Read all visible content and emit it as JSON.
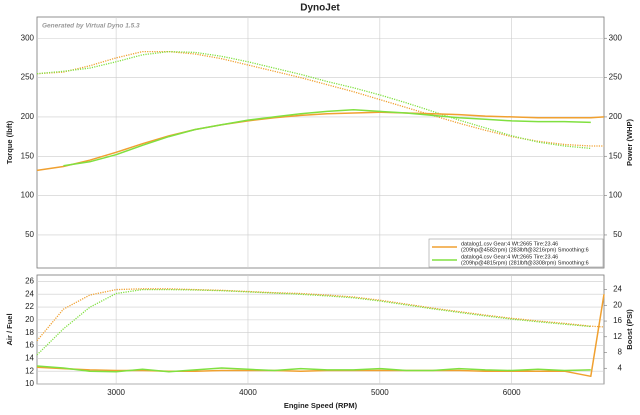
{
  "chart_data": [
    {
      "type": "line",
      "title": "DynoJet",
      "annotation": "Generated by Virtual Dyno 1.5.3",
      "ylabel": "Torque (lbft)",
      "y2label": "Power (WHP)",
      "x": [
        2400,
        2600,
        2800,
        3000,
        3200,
        3400,
        3600,
        3800,
        4000,
        4200,
        4400,
        4600,
        4800,
        5000,
        5200,
        5400,
        5600,
        5800,
        6000,
        6200,
        6400,
        6600,
        6700
      ],
      "xlim": [
        2400,
        6700
      ],
      "xticks": [
        3000,
        4000,
        5000,
        6000
      ],
      "ylim": [
        8,
        327
      ],
      "yticks": [
        50,
        100,
        150,
        200,
        250,
        300
      ],
      "y2lim": [
        8,
        327
      ],
      "y2ticks": [
        50,
        100,
        150,
        200,
        250,
        300
      ],
      "grid": true,
      "legend": "lower right",
      "series": [
        {
          "name": "datalog1.csv Gear:4 Wt:2665 Tire:23.46",
          "detail": "(209hp@4582rpm) (283lbft@3216rpm) Smoothing:6",
          "color": "#f0a030",
          "style": "dotted",
          "values": [
            255,
            257,
            265,
            275,
            283,
            283,
            280,
            274,
            266,
            258,
            250,
            241,
            232,
            222,
            212,
            202,
            192,
            183,
            175,
            169,
            165,
            163,
            163
          ]
        },
        {
          "name": "datalog4.csv Gear:4 Wt:2665 Tire:23.46",
          "detail": "(209hp@4815rpm) (281lbft@3308rpm) Smoothing:6",
          "color": "#80e040",
          "style": "dotted",
          "values": [
            255,
            258,
            262,
            270,
            279,
            283,
            282,
            277,
            270,
            262,
            254,
            245,
            237,
            228,
            218,
            207,
            196,
            186,
            176,
            168,
            163,
            160,
            null
          ]
        },
        {
          "color": "#f0a030",
          "style": "solid",
          "axis": "y2",
          "values": [
            132,
            137,
            145,
            155,
            166,
            176,
            184,
            190,
            195,
            199,
            202,
            204,
            205,
            206,
            205,
            204,
            203,
            201,
            200,
            199,
            199,
            199,
            200
          ]
        },
        {
          "color": "#80e040",
          "style": "solid",
          "axis": "y2",
          "values": [
            null,
            138,
            143,
            152,
            164,
            175,
            184,
            190,
            196,
            200,
            204,
            207,
            209,
            207,
            205,
            202,
            199,
            197,
            195,
            194,
            194,
            193,
            null
          ]
        }
      ]
    },
    {
      "type": "line",
      "xlabel": "Engine Speed (RPM)",
      "ylabel": "Air / Fuel",
      "y2label": "Boost (PSI)",
      "x": [
        2400,
        2600,
        2800,
        3000,
        3200,
        3400,
        3600,
        3800,
        4000,
        4200,
        4400,
        4600,
        4800,
        5000,
        5200,
        5400,
        5600,
        5800,
        6000,
        6200,
        6400,
        6600,
        6700
      ],
      "xlim": [
        2400,
        6700
      ],
      "xticks": [
        3000,
        4000,
        5000,
        6000
      ],
      "ylim": [
        10,
        27
      ],
      "yticks": [
        10,
        12,
        14,
        16,
        18,
        20,
        22,
        24,
        26
      ],
      "y2lim": [
        0,
        27.7
      ],
      "y2ticks": [
        4,
        8,
        12,
        16,
        20,
        24
      ],
      "grid": true,
      "series": [
        {
          "color": "#f0a030",
          "style": "solid",
          "values": [
            12.6,
            12.4,
            12.2,
            12.1,
            12.1,
            12.0,
            12.0,
            12.1,
            12.1,
            12.1,
            12.0,
            12.1,
            12.1,
            12.1,
            12.1,
            12.1,
            12.1,
            12.0,
            12.0,
            12.0,
            12.0,
            11.2,
            24
          ]
        },
        {
          "color": "#80e040",
          "style": "solid",
          "values": [
            12.8,
            12.5,
            12.0,
            11.9,
            12.3,
            11.9,
            12.2,
            12.5,
            12.3,
            12.1,
            12.4,
            12.2,
            12.2,
            12.4,
            12.1,
            12.1,
            12.4,
            12.2,
            12.1,
            12.3,
            12.1,
            12.2,
            null
          ]
        },
        {
          "color": "#f0a030",
          "style": "dotted",
          "axis": "y2",
          "values": [
            11,
            19,
            22.6,
            24,
            24.2,
            24.2,
            24,
            23.8,
            23.5,
            23.2,
            23,
            22.6,
            22.1,
            21.3,
            20.3,
            19.3,
            18.4,
            17.5,
            16.7,
            16,
            15.4,
            14.7,
            14.5
          ]
        },
        {
          "color": "#80e040",
          "style": "dotted",
          "axis": "y2",
          "values": [
            7.4,
            14,
            19.5,
            23,
            24,
            24,
            23.9,
            23.7,
            23.4,
            23.1,
            22.8,
            22.4,
            21.9,
            21.1,
            20.1,
            19.1,
            18.2,
            17.3,
            16.5,
            15.8,
            15.2,
            14.6,
            null
          ]
        }
      ]
    }
  ]
}
